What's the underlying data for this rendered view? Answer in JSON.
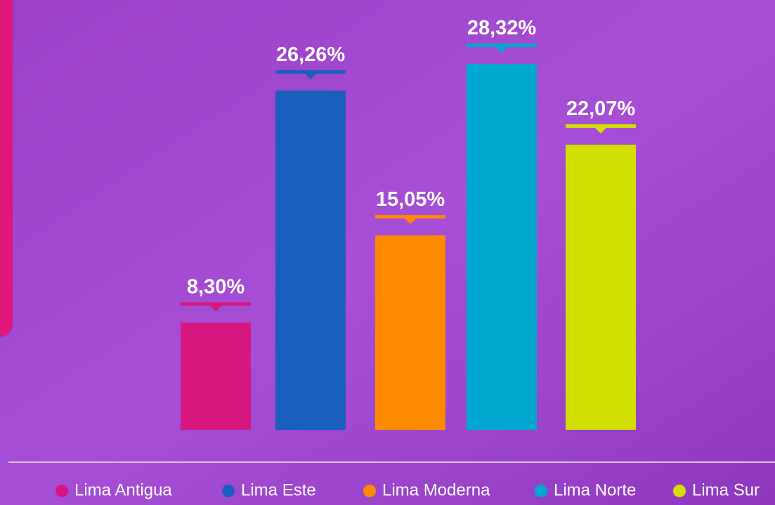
{
  "chart_data": {
    "type": "bar",
    "categories": [
      "Lima Antigua",
      "Lima Este",
      "Lima Moderna",
      "Lima Norte",
      "Lima Sur"
    ],
    "values": [
      8.3,
      26.26,
      15.05,
      28.32,
      22.07
    ],
    "value_labels": [
      "8,30%",
      "26,26%",
      "15,05%",
      "28,32%",
      "22,07%"
    ],
    "colors": [
      "#d6177f",
      "#1a5fc0",
      "#ff8a00",
      "#00a8d0",
      "#d3df00"
    ]
  }
}
